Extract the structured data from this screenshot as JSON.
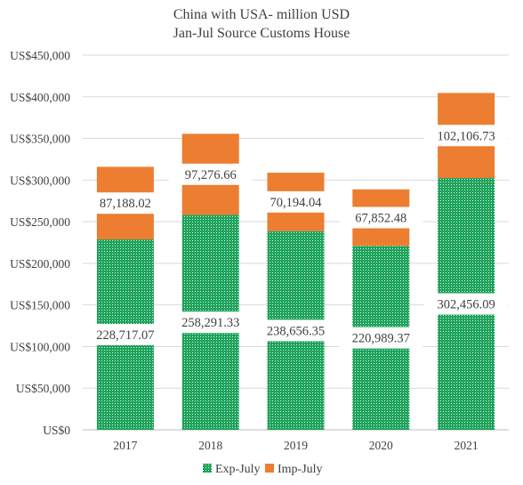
{
  "chart_data": {
    "type": "bar",
    "stacked": true,
    "title": "China with USA- million USD",
    "subtitle": "Jan-Jul Source Customs House",
    "categories": [
      "2017",
      "2018",
      "2019",
      "2020",
      "2021"
    ],
    "series": [
      {
        "name": "Exp-July",
        "values": [
          228717.07,
          258291.33,
          238656.35,
          220989.37,
          302456.09
        ],
        "labels": [
          "228,717.07",
          "258,291.33",
          "238,656.35",
          "220,989.37",
          "302,456.09"
        ],
        "color": "#1fa35c",
        "pattern": "dotted"
      },
      {
        "name": "Imp-July",
        "values": [
          87188.02,
          97276.66,
          70194.04,
          67852.48,
          102106.73
        ],
        "labels": [
          "87,188.02",
          "97,276.66",
          "70,194.04",
          "67,852.48",
          "102,106.73"
        ],
        "color": "#ed7d31"
      }
    ],
    "ylim": [
      0,
      450000
    ],
    "yticks": [
      0,
      50000,
      100000,
      150000,
      200000,
      250000,
      300000,
      350000,
      400000,
      450000
    ],
    "ytick_labels": [
      "US$0",
      "US$50,000",
      "US$100,000",
      "US$150,000",
      "US$200,000",
      "US$250,000",
      "US$300,000",
      "US$350,000",
      "US$400,000",
      "US$450,000"
    ],
    "grid": true,
    "legend": "bottom"
  }
}
